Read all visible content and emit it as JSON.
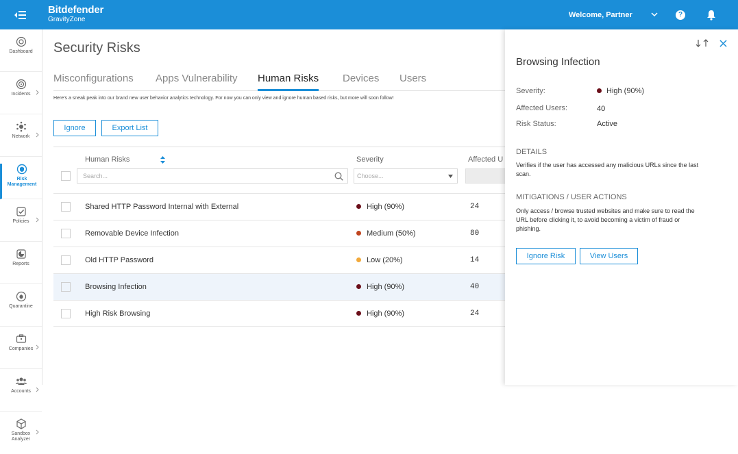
{
  "header": {
    "brand_name": "Bitdefender",
    "brand_sub": "GravityZone",
    "welcome": "Welcome, Partner",
    "help_glyph": "?",
    "accent": "#1b8ed8"
  },
  "sidebar": {
    "items": [
      {
        "label": "Dashboard",
        "icon": "dashboard-icon"
      },
      {
        "label": "Incidents",
        "icon": "incidents-icon",
        "has_arrow": true
      },
      {
        "label": "Network",
        "icon": "network-icon",
        "has_arrow": true
      },
      {
        "label": "Risk",
        "label2": "Management",
        "icon": "risk-management-icon",
        "active": true
      },
      {
        "label": "Policies",
        "icon": "policies-icon",
        "has_arrow": true
      },
      {
        "label": "Reports",
        "icon": "reports-icon"
      },
      {
        "label": "Quarantine",
        "icon": "quarantine-icon"
      },
      {
        "label": "Companies",
        "icon": "companies-icon",
        "has_arrow": true
      },
      {
        "label": "Accounts",
        "icon": "accounts-icon",
        "has_arrow": true
      },
      {
        "label": "Sandbox",
        "label2": "Analyzer",
        "icon": "sandbox-icon",
        "has_arrow": true
      }
    ]
  },
  "main": {
    "title": "Security Risks",
    "tabs": [
      {
        "label": "Misconfigurations"
      },
      {
        "label": "Apps Vulnerability"
      },
      {
        "label": "Human Risks",
        "active": true
      },
      {
        "label": "Devices"
      },
      {
        "label": "Users"
      }
    ],
    "intro": "Here's a sneak peak into our brand new user behavior analytics technology. For now you can only view and ignore human based risks, but more will soon follow!",
    "buttons": {
      "ignore": "Ignore",
      "export": "Export List"
    },
    "table": {
      "col_name": "Human Risks",
      "col_severity": "Severity",
      "col_affected": "Affected U",
      "search_placeholder": "Search...",
      "select_placeholder": "Choose...",
      "rows": [
        {
          "name": "Shared HTTP Password Internal with External",
          "severity": "High (90%)",
          "color": "#6b0f1a",
          "count": "24"
        },
        {
          "name": "Removable Device Infection",
          "severity": "Medium (50%)",
          "color": "#c0451e",
          "count": "80"
        },
        {
          "name": "Old HTTP Password",
          "severity": "Low (20%)",
          "color": "#f2a93b",
          "count": "14"
        },
        {
          "name": "Browsing Infection",
          "severity": "High (90%)",
          "color": "#6b0f1a",
          "count": "40",
          "selected": true
        },
        {
          "name": "High Risk Browsing",
          "severity": "High (90%)",
          "color": "#6b0f1a",
          "count": "24"
        }
      ]
    }
  },
  "panel": {
    "title": "Browsing Infection",
    "severity_label": "Severity:",
    "severity_value": "High (90%)",
    "severity_color": "#6b0f1a",
    "affected_label": "Affected Users:",
    "affected_value": "40",
    "status_label": "Risk Status:",
    "status_value": "Active",
    "details_heading": "DETAILS",
    "details_text": "Verifies if the user has accessed any malicious URLs since the last scan.",
    "mitigations_heading": "MITIGATIONS / USER ACTIONS",
    "mitigations_text": "Only access / browse trusted websites and make sure to read the URL before clicking it, to avoid becoming a victim of fraud or phishing.",
    "btn_ignore": "Ignore Risk",
    "btn_view": "View Users"
  }
}
